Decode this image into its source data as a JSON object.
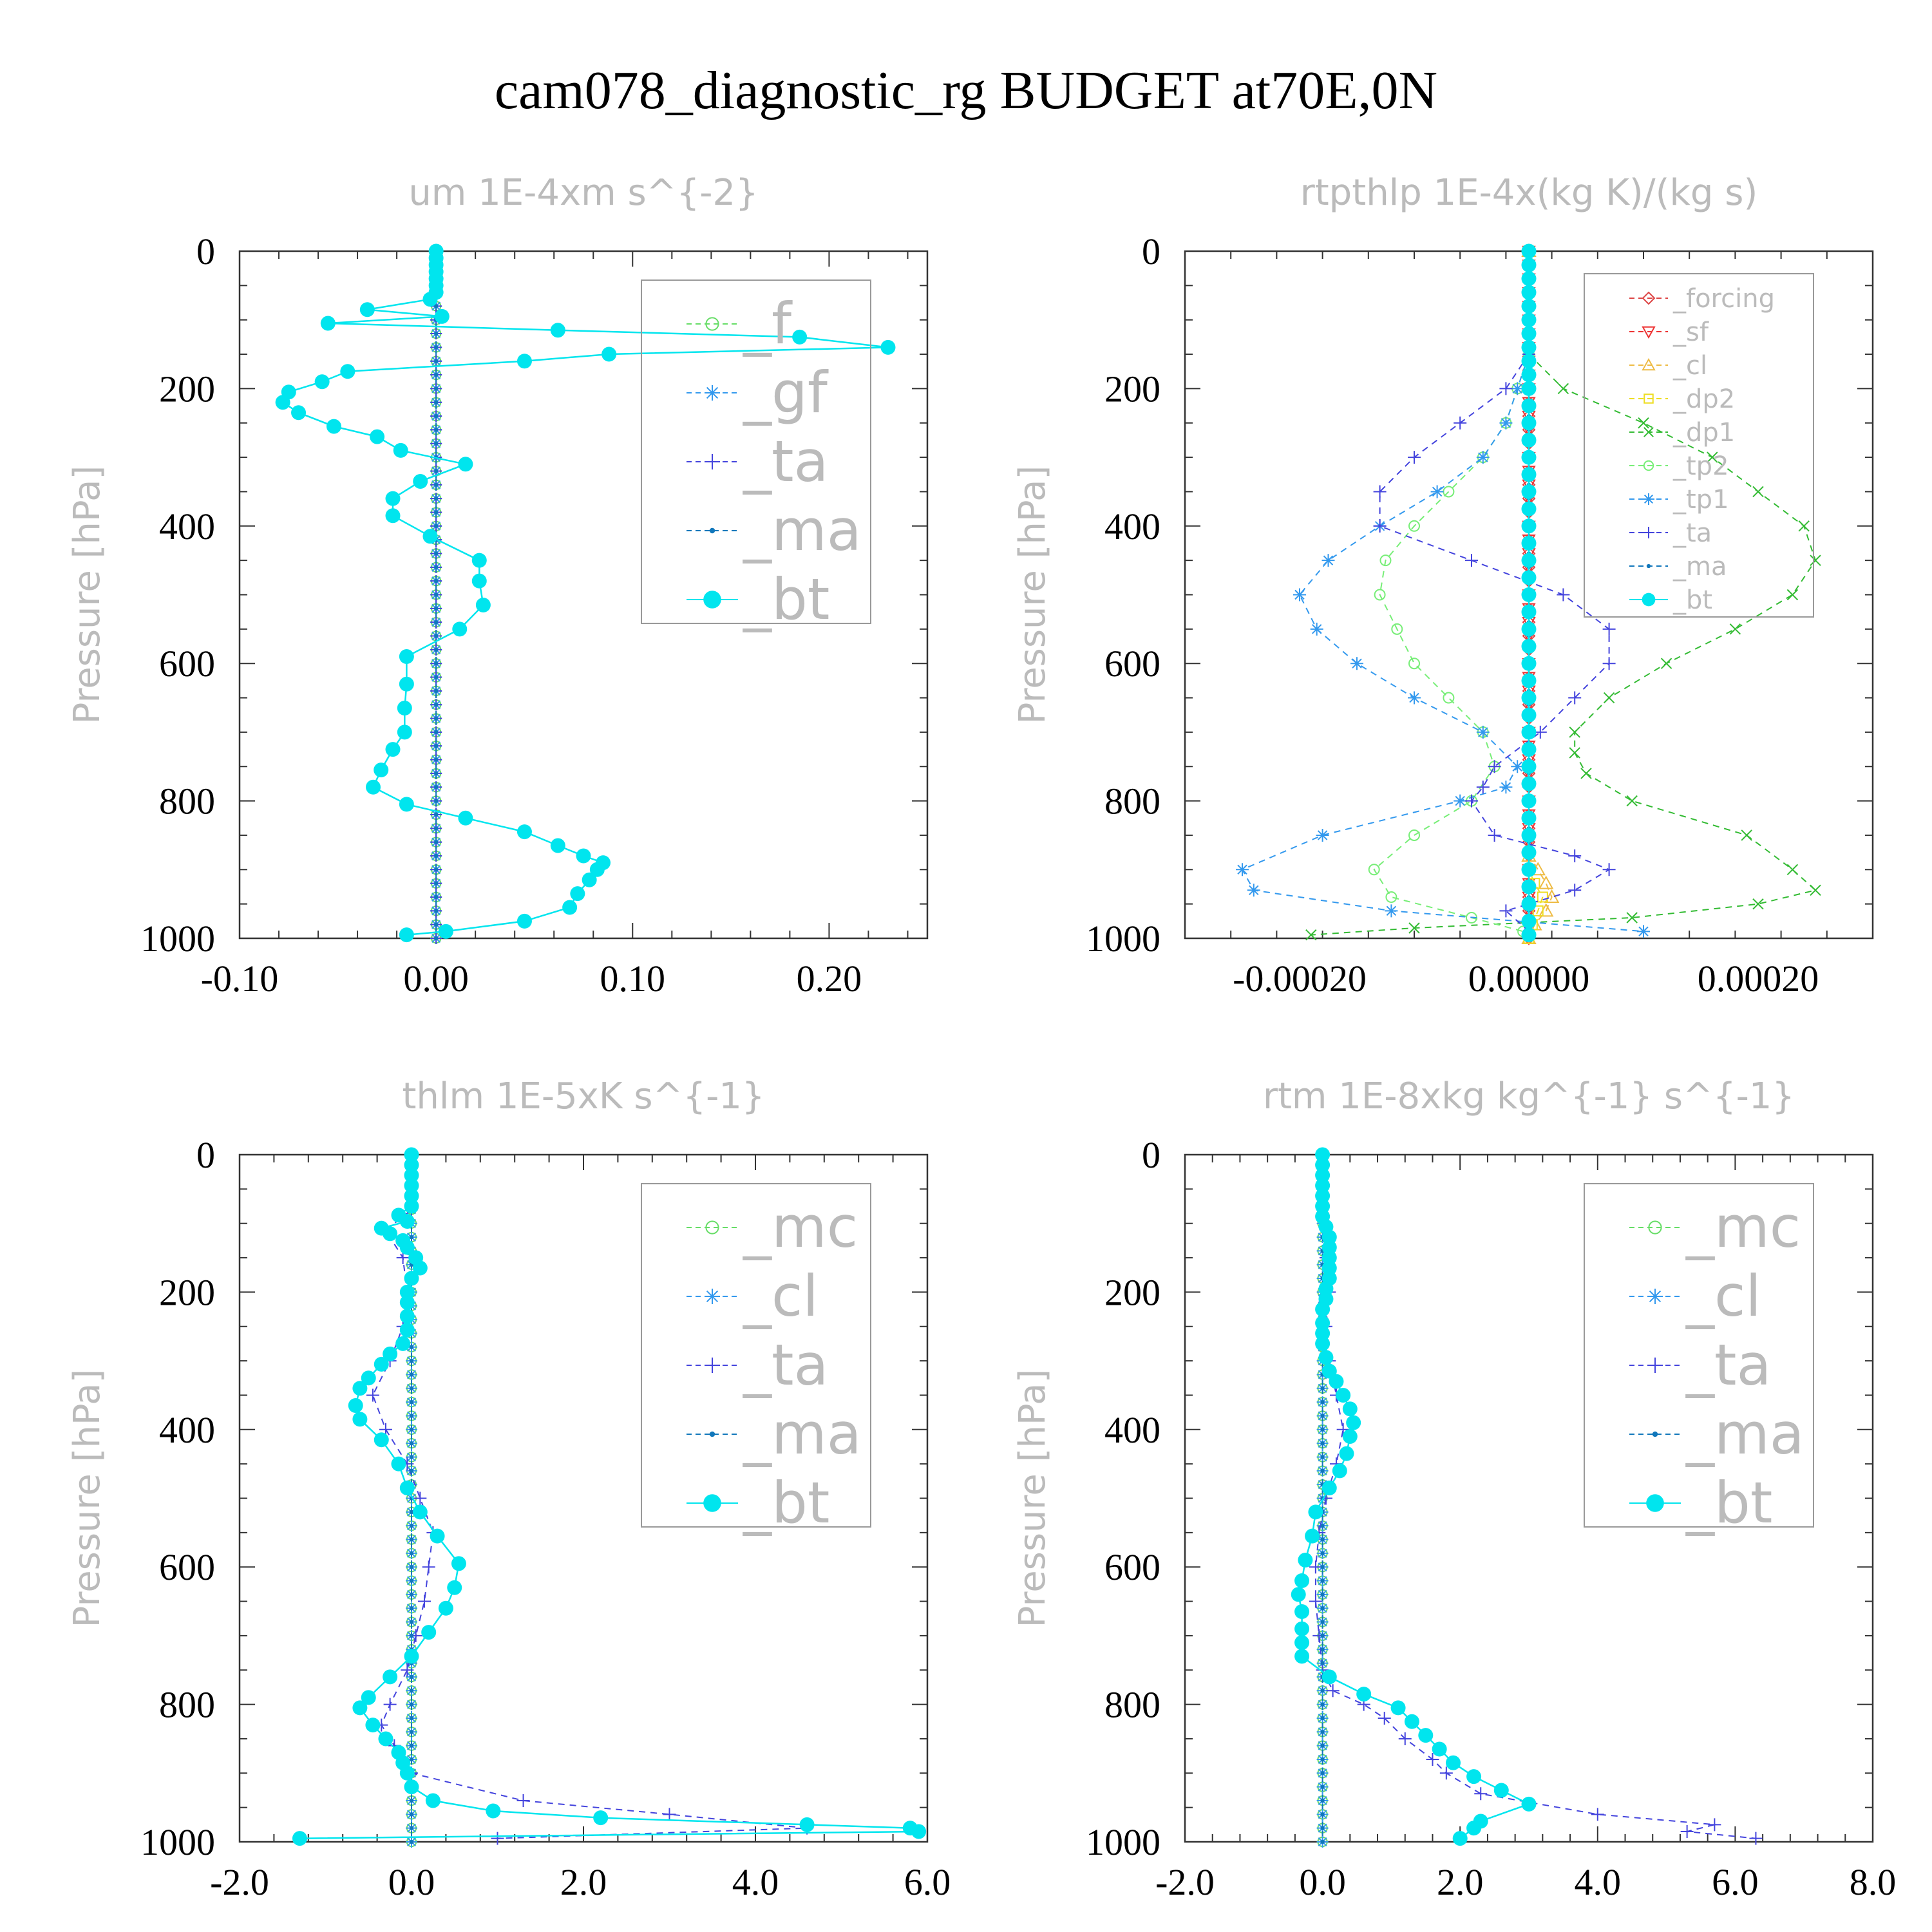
{
  "title": "cam078_diagnostic_rg  BUDGET at70E,0N",
  "colors": {
    "frame": "#333333",
    "label": "#bbbbbb",
    "f": "#66dd66",
    "gf": "#3399ee",
    "ta": "#4444dd",
    "ma": "#1177bb",
    "bt": "#00e5ee",
    "mc": "#66dd66",
    "cl": "#3399ee",
    "forcing": "#dd4444",
    "sf": "#ee3333",
    "cl_rt": "#eebb44",
    "dp2": "#eedd22",
    "dp1": "#33bb33",
    "tp2": "#77ee77",
    "tp1": "#3399ee"
  },
  "chart_data": [
    {
      "type": "line",
      "title": "um  1E-4xm s^{-2}",
      "ylabel": "Pressure [hPa]",
      "ylim": [
        1000,
        0
      ],
      "xlim": [
        -0.1,
        0.25
      ],
      "xticks": [
        "-0.10",
        "0.00",
        "0.10",
        "0.20"
      ],
      "yticks": [
        "0",
        "200",
        "400",
        "600",
        "800",
        "1000"
      ],
      "legend": [
        "_f",
        "_gf",
        "_ta",
        "_ma",
        "_bt"
      ],
      "series": [
        {
          "name": "_f",
          "color": "f",
          "marker": "circle",
          "y": [
            0,
            1000
          ],
          "x": [
            0,
            0
          ]
        },
        {
          "name": "_gf",
          "color": "gf",
          "marker": "star",
          "y": [
            0,
            1000
          ],
          "x": [
            0,
            0
          ]
        },
        {
          "name": "_ta",
          "color": "ta",
          "marker": "plus",
          "y": [
            0,
            1000
          ],
          "x": [
            0,
            0
          ]
        },
        {
          "name": "_ma",
          "color": "ma",
          "marker": "dot",
          "y": [
            0,
            1000
          ],
          "x": [
            0,
            0
          ]
        },
        {
          "name": "_bt",
          "color": "bt",
          "marker": "bigdot",
          "y": [
            0,
            10,
            20,
            30,
            40,
            50,
            60,
            70,
            85,
            95,
            105,
            115,
            125,
            140,
            150,
            160,
            175,
            190,
            205,
            220,
            235,
            255,
            270,
            290,
            310,
            335,
            360,
            385,
            415,
            450,
            480,
            515,
            550,
            590,
            630,
            665,
            700,
            725,
            755,
            780,
            805,
            825,
            845,
            865,
            880,
            890,
            900,
            915,
            935,
            955,
            975,
            990,
            995
          ],
          "x": [
            0,
            0,
            0,
            0,
            0,
            0,
            0,
            -0.003,
            -0.035,
            0.003,
            -0.055,
            0.062,
            0.185,
            0.23,
            0.088,
            0.045,
            -0.045,
            -0.058,
            -0.075,
            -0.078,
            -0.07,
            -0.052,
            -0.03,
            -0.018,
            0.015,
            -0.008,
            -0.022,
            -0.022,
            -0.003,
            0.022,
            0.022,
            0.024,
            0.012,
            -0.015,
            -0.015,
            -0.016,
            -0.016,
            -0.022,
            -0.028,
            -0.032,
            -0.015,
            0.015,
            0.045,
            0.062,
            0.075,
            0.085,
            0.082,
            0.078,
            0.072,
            0.068,
            0.045,
            0.005,
            -0.015
          ]
        }
      ]
    },
    {
      "type": "line",
      "title": "rtpthlp  1E-4x(kg K)/(kg s)",
      "ylabel": "Pressure [hPa]",
      "ylim": [
        1000,
        0
      ],
      "xlim": [
        -0.0003,
        0.0003
      ],
      "xticks": [
        "-0.00020",
        "0.00000",
        "0.00020"
      ],
      "yticks": [
        "0",
        "200",
        "400",
        "600",
        "800",
        "1000"
      ],
      "legend": [
        "_forcing",
        "_sf",
        "_cl",
        "_dp2",
        "_dp1",
        "_tp2",
        "_tp1",
        "_ta",
        "_ma",
        "_bt"
      ],
      "series": [
        {
          "name": "_forcing",
          "color": "forcing",
          "marker": "diamond",
          "y": [
            0,
            1000
          ],
          "x": [
            0,
            0
          ]
        },
        {
          "name": "_sf",
          "color": "sf",
          "marker": "tri-down",
          "y": [
            0,
            1000
          ],
          "x": [
            0,
            0
          ]
        },
        {
          "name": "_cl",
          "color": "cl_rt",
          "marker": "tri-up",
          "y": [
            0,
            880,
            900,
            920,
            940,
            960,
            980,
            1000
          ],
          "x": [
            0,
            0,
            8e-06,
            1.5e-05,
            2e-05,
            1.5e-05,
            5e-06,
            0
          ]
        },
        {
          "name": "_dp2",
          "color": "dp2",
          "marker": "square",
          "y": [
            0,
            900,
            920,
            940,
            960,
            980,
            1000
          ],
          "x": [
            0,
            0,
            5e-06,
            1.2e-05,
            8e-06,
            3e-06,
            0
          ]
        },
        {
          "name": "_dp1",
          "color": "dp1",
          "marker": "cross",
          "y": [
            150,
            200,
            250,
            300,
            350,
            400,
            450,
            500,
            550,
            600,
            650,
            700,
            730,
            760,
            800,
            850,
            900,
            930,
            950,
            970,
            985,
            995
          ],
          "x": [
            0,
            3e-05,
            0.0001,
            0.00016,
            0.0002,
            0.00024,
            0.00025,
            0.00023,
            0.00018,
            0.00012,
            7e-05,
            4e-05,
            4e-05,
            5e-05,
            9e-05,
            0.00019,
            0.00023,
            0.00025,
            0.0002,
            9e-05,
            -0.0001,
            -0.00019
          ]
        },
        {
          "name": "_tp2",
          "color": "tp2",
          "marker": "circle",
          "y": [
            150,
            200,
            250,
            300,
            350,
            400,
            450,
            500,
            550,
            600,
            650,
            700,
            750,
            800,
            850,
            900,
            940,
            970,
            990
          ],
          "x": [
            0,
            -1e-05,
            -2e-05,
            -4e-05,
            -7e-05,
            -0.0001,
            -0.000125,
            -0.00013,
            -0.000115,
            -0.0001,
            -7e-05,
            -4e-05,
            -3e-05,
            -5e-05,
            -0.0001,
            -0.000135,
            -0.00012,
            -5e-05,
            -5e-06
          ]
        },
        {
          "name": "_tp1",
          "color": "tp1",
          "marker": "star",
          "y": [
            150,
            200,
            250,
            300,
            350,
            400,
            450,
            500,
            550,
            600,
            650,
            700,
            750,
            780,
            800,
            850,
            900,
            930,
            960,
            990
          ],
          "x": [
            0,
            -1e-05,
            -2e-05,
            -4e-05,
            -8e-05,
            -0.00013,
            -0.000175,
            -0.0002,
            -0.000185,
            -0.00015,
            -0.0001,
            -4e-05,
            -1e-05,
            -2e-05,
            -6e-05,
            -0.00018,
            -0.00025,
            -0.00024,
            -0.00012,
            0.0001
          ]
        },
        {
          "name": "_ta",
          "color": "ta",
          "marker": "plus",
          "y": [
            150,
            200,
            250,
            300,
            350,
            400,
            450,
            500,
            550,
            600,
            650,
            700,
            750,
            780,
            800,
            850,
            880,
            900,
            930,
            960,
            990
          ],
          "x": [
            0,
            -2e-05,
            -6e-05,
            -0.0001,
            -0.00013,
            -0.00013,
            -5e-05,
            3e-05,
            7e-05,
            7e-05,
            4e-05,
            1e-05,
            -3e-05,
            -4e-05,
            -5e-05,
            -3e-05,
            4e-05,
            7e-05,
            4e-05,
            -2e-05,
            0
          ]
        },
        {
          "name": "_ma",
          "color": "ma",
          "marker": "dot",
          "y": [
            0,
            1000
          ],
          "x": [
            0,
            0
          ]
        },
        {
          "name": "_bt",
          "color": "bt",
          "marker": "bigdot",
          "y": [
            0,
            20,
            40,
            60,
            80,
            100,
            120,
            140,
            160,
            180,
            200,
            225,
            250,
            275,
            300,
            325,
            350,
            375,
            400,
            425,
            450,
            475,
            500,
            525,
            550,
            575,
            600,
            625,
            650,
            675,
            700,
            725,
            750,
            775,
            800,
            825,
            850,
            875,
            900,
            925,
            950,
            975,
            995
          ],
          "x": [
            0,
            0,
            0,
            0,
            0,
            0,
            0,
            0,
            0,
            0,
            0,
            0,
            0,
            0,
            0,
            0,
            0,
            0,
            0,
            0,
            0,
            0,
            0,
            0,
            0,
            0,
            0,
            0,
            0,
            0,
            0,
            0,
            0,
            0,
            0,
            0,
            0,
            0,
            0,
            0,
            0,
            0,
            0
          ]
        }
      ]
    },
    {
      "type": "line",
      "title": "thlm  1E-5xK s^{-1}",
      "ylabel": "Pressure [hPa]",
      "ylim": [
        1000,
        0
      ],
      "xlim": [
        -2.0,
        6.0
      ],
      "xticks": [
        "-2.0",
        "0.0",
        "2.0",
        "4.0",
        "6.0"
      ],
      "yticks": [
        "0",
        "200",
        "400",
        "600",
        "800",
        "1000"
      ],
      "legend": [
        "_mc",
        "_cl",
        "_ta",
        "_ma",
        "_bt"
      ],
      "series": [
        {
          "name": "_mc",
          "color": "mc",
          "marker": "circle",
          "y": [
            0,
            1000
          ],
          "x": [
            0,
            0
          ]
        },
        {
          "name": "_cl",
          "color": "cl",
          "marker": "star",
          "y": [
            0,
            1000
          ],
          "x": [
            0,
            0
          ]
        },
        {
          "name": "_ta",
          "color": "ta",
          "marker": "plus",
          "y": [
            0,
            80,
            110,
            150,
            200,
            250,
            300,
            350,
            400,
            450,
            500,
            550,
            600,
            650,
            700,
            750,
            800,
            830,
            860,
            900,
            940,
            960,
            980,
            995
          ],
          "x": [
            0,
            0,
            -0.3,
            -0.1,
            -0.05,
            -0.1,
            -0.25,
            -0.45,
            -0.3,
            -0.05,
            0.1,
            0.25,
            0.2,
            0.15,
            0.05,
            -0.05,
            -0.25,
            -0.35,
            -0.2,
            0,
            1.3,
            3.0,
            4.6,
            1.0
          ]
        },
        {
          "name": "_ma",
          "color": "ma",
          "marker": "dot",
          "y": [
            0,
            1000
          ],
          "x": [
            0,
            0
          ]
        },
        {
          "name": "_bt",
          "color": "bt",
          "marker": "bigdot",
          "y": [
            0,
            15,
            30,
            45,
            60,
            75,
            88,
            97,
            107,
            115,
            125,
            135,
            150,
            165,
            180,
            200,
            215,
            235,
            255,
            275,
            290,
            305,
            325,
            340,
            365,
            385,
            415,
            450,
            485,
            520,
            555,
            595,
            630,
            660,
            695,
            730,
            760,
            790,
            805,
            830,
            850,
            870,
            885,
            900,
            920,
            940,
            955,
            965,
            975,
            980,
            985,
            995
          ],
          "x": [
            0,
            0,
            0,
            0,
            0,
            0,
            -0.15,
            -0.05,
            -0.35,
            -0.25,
            -0.1,
            -0.05,
            0.05,
            0.1,
            0,
            -0.05,
            -0.05,
            -0.05,
            -0.05,
            -0.1,
            -0.25,
            -0.35,
            -0.5,
            -0.6,
            -0.65,
            -0.6,
            -0.35,
            -0.15,
            -0.05,
            0.1,
            0.3,
            0.55,
            0.5,
            0.4,
            0.2,
            0,
            -0.25,
            -0.5,
            -0.6,
            -0.45,
            -0.3,
            -0.15,
            -0.1,
            -0.05,
            0,
            0.25,
            0.95,
            2.2,
            4.6,
            5.8,
            5.9,
            -1.3
          ]
        }
      ]
    },
    {
      "type": "line",
      "title": "rtm  1E-8xkg kg^{-1} s^{-1}",
      "ylabel": "Pressure [hPa]",
      "ylim": [
        1000,
        0
      ],
      "xlim": [
        -2.0,
        8.0
      ],
      "xticks": [
        "-2.0",
        "0.0",
        "2.0",
        "4.0",
        "6.0",
        "8.0"
      ],
      "yticks": [
        "0",
        "200",
        "400",
        "600",
        "800",
        "1000"
      ],
      "legend": [
        "_mc",
        "_cl",
        "_ta",
        "_ma",
        "_bt"
      ],
      "series": [
        {
          "name": "_mc",
          "color": "mc",
          "marker": "circle",
          "y": [
            0,
            1000
          ],
          "x": [
            0,
            0
          ]
        },
        {
          "name": "_cl",
          "color": "cl",
          "marker": "star",
          "y": [
            0,
            1000
          ],
          "x": [
            0,
            0
          ]
        },
        {
          "name": "_ta",
          "color": "ta",
          "marker": "plus",
          "y": [
            0,
            150,
            200,
            250,
            300,
            350,
            400,
            450,
            500,
            550,
            600,
            650,
            700,
            750,
            780,
            800,
            820,
            850,
            880,
            900,
            930,
            960,
            975,
            985,
            995
          ],
          "x": [
            0,
            0.05,
            0.1,
            0.05,
            0.1,
            0.2,
            0.3,
            0.2,
            0.05,
            -0.05,
            -0.1,
            -0.1,
            -0.05,
            0,
            0.15,
            0.6,
            0.9,
            1.2,
            1.6,
            1.8,
            2.3,
            4.0,
            5.7,
            5.3,
            6.3
          ]
        },
        {
          "name": "_ma",
          "color": "ma",
          "marker": "dot",
          "y": [
            0,
            1000
          ],
          "x": [
            0,
            0
          ]
        },
        {
          "name": "_bt",
          "color": "bt",
          "marker": "bigdot",
          "y": [
            0,
            15,
            30,
            45,
            60,
            75,
            90,
            105,
            120,
            135,
            150,
            165,
            180,
            195,
            210,
            225,
            245,
            260,
            275,
            295,
            315,
            330,
            350,
            370,
            390,
            410,
            435,
            460,
            485,
            520,
            555,
            590,
            620,
            640,
            665,
            690,
            710,
            730,
            760,
            785,
            805,
            825,
            845,
            865,
            885,
            905,
            925,
            945,
            970,
            980,
            995
          ],
          "x": [
            0,
            0,
            0,
            0,
            0,
            0,
            0,
            0.05,
            0.1,
            0.1,
            0.1,
            0.1,
            0.1,
            0.05,
            0.05,
            0,
            0,
            0,
            0,
            0.05,
            0.1,
            0.2,
            0.3,
            0.4,
            0.45,
            0.4,
            0.35,
            0.25,
            0.1,
            -0.1,
            -0.15,
            -0.25,
            -0.3,
            -0.35,
            -0.3,
            -0.3,
            -0.3,
            -0.3,
            0.1,
            0.6,
            1.1,
            1.3,
            1.5,
            1.7,
            1.9,
            2.2,
            2.6,
            3.0,
            2.3,
            2.2,
            2.0
          ]
        }
      ]
    }
  ]
}
